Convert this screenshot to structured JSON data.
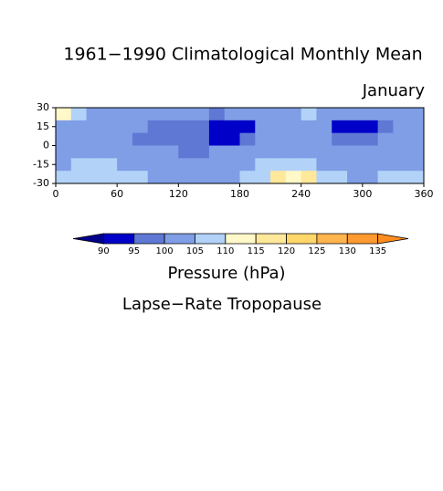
{
  "chart_data": {
    "type": "heatmap",
    "title": "1961−1990 Climatological Monthly Mean",
    "subtitle": "January",
    "xlim": [
      0,
      360
    ],
    "ylim": [
      -30,
      30
    ],
    "xticks": [
      0,
      60,
      120,
      180,
      240,
      300,
      360
    ],
    "yticks": [
      30,
      15,
      0,
      -15,
      -30
    ],
    "xbins": [
      0,
      15,
      30,
      45,
      60,
      75,
      90,
      105,
      120,
      135,
      150,
      165,
      180,
      195,
      210,
      225,
      240,
      255,
      270,
      285,
      300,
      315,
      330,
      345,
      360
    ],
    "ybins": [
      30,
      20,
      10,
      0,
      -10,
      -20,
      -30
    ],
    "values": [
      [
        111,
        108,
        102,
        102,
        102,
        102,
        102,
        102,
        102,
        102,
        98,
        102,
        102,
        102,
        102,
        102,
        108,
        104,
        102,
        102,
        102,
        102,
        102,
        104
      ],
      [
        103,
        102,
        102,
        102,
        102,
        102,
        98,
        98,
        98,
        98,
        93,
        93,
        93,
        102,
        102,
        102,
        102,
        102,
        93,
        92,
        93,
        98,
        102,
        102
      ],
      [
        102,
        102,
        102,
        102,
        102,
        98,
        98,
        98,
        98,
        98,
        93,
        93,
        98,
        102,
        102,
        102,
        102,
        102,
        98,
        98,
        98,
        102,
        102,
        102
      ],
      [
        102,
        102,
        102,
        102,
        102,
        102,
        102,
        102,
        98,
        98,
        102,
        102,
        102,
        102,
        102,
        102,
        102,
        102,
        102,
        102,
        102,
        102,
        102,
        102
      ],
      [
        104,
        107,
        107,
        107,
        104,
        102,
        102,
        102,
        102,
        102,
        102,
        102,
        102,
        108,
        108,
        108,
        108,
        104,
        104,
        102,
        102,
        102,
        104,
        104
      ],
      [
        107,
        108,
        108,
        108,
        108,
        107,
        104,
        104,
        104,
        104,
        104,
        104,
        108,
        108,
        118,
        110,
        118,
        108,
        107,
        104,
        104,
        108,
        108,
        108
      ]
    ],
    "colorbar": {
      "levels": [
        90,
        95,
        100,
        105,
        110,
        115,
        120,
        125,
        130,
        135
      ],
      "colors": [
        "#00008c",
        "#0000c8",
        "#5f78d4",
        "#7f9ee6",
        "#b2d2f8",
        "#fff8c8",
        "#ffe89a",
        "#ffd66a",
        "#ffb44e",
        "#ff9a30",
        "#ff8c1e"
      ],
      "label": "Pressure (hPa)"
    },
    "caption": "Lapse−Rate Tropopause"
  }
}
